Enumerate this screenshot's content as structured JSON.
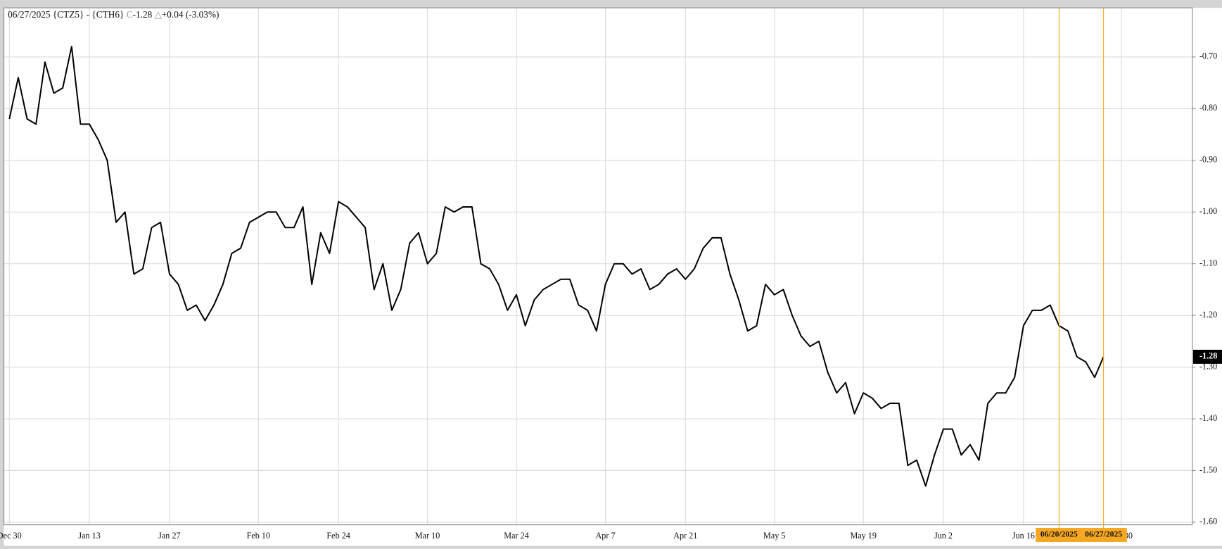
{
  "chart_data": {
    "type": "line",
    "header": {
      "title": "06/27/2025 {CTZ5} - {CTH6}",
      "close_label": "C",
      "close": "-1.28",
      "change_label": "△",
      "change": "+0.04",
      "change_pct": "(-3.03%)"
    },
    "categories": [
      "Dec 30",
      null,
      null,
      null,
      null,
      null,
      null,
      null,
      null,
      "Jan 13",
      null,
      null,
      null,
      null,
      null,
      null,
      null,
      null,
      "Jan 27",
      null,
      null,
      null,
      null,
      null,
      null,
      null,
      null,
      null,
      "Feb 10",
      null,
      null,
      null,
      null,
      null,
      null,
      null,
      null,
      "Feb 24",
      null,
      null,
      null,
      null,
      null,
      null,
      null,
      null,
      null,
      "Mar 10",
      null,
      null,
      null,
      null,
      null,
      null,
      null,
      null,
      null,
      "Mar 24",
      null,
      null,
      null,
      null,
      null,
      null,
      null,
      null,
      null,
      "Apr 7",
      null,
      null,
      null,
      null,
      null,
      null,
      null,
      null,
      "Apr 21",
      null,
      null,
      null,
      null,
      null,
      null,
      null,
      null,
      null,
      "May 5",
      null,
      null,
      null,
      null,
      null,
      null,
      null,
      null,
      null,
      "May 19",
      null,
      null,
      null,
      null,
      null,
      null,
      null,
      null,
      "Jun 2",
      null,
      null,
      null,
      null,
      null,
      null,
      null,
      null,
      "Jun 16",
      null,
      null,
      null,
      null,
      null,
      null,
      null,
      null,
      null,
      null,
      "Jun 30"
    ],
    "series": [
      {
        "name": "{CTZ5} - {CTH6}",
        "color": "#000000",
        "values": [
          -0.82,
          -0.74,
          -0.82,
          -0.83,
          -0.71,
          -0.77,
          -0.76,
          -0.68,
          -0.83,
          -0.83,
          -0.86,
          -0.9,
          -1.02,
          -1.0,
          -1.12,
          -1.11,
          -1.03,
          -1.02,
          -1.12,
          -1.14,
          -1.19,
          -1.18,
          -1.21,
          -1.18,
          -1.14,
          -1.08,
          -1.07,
          -1.02,
          -1.01,
          -1.0,
          -1.0,
          -1.03,
          -1.03,
          -0.99,
          -1.14,
          -1.04,
          -1.08,
          -0.98,
          -0.99,
          -1.01,
          -1.03,
          -1.15,
          -1.1,
          -1.19,
          -1.15,
          -1.06,
          -1.04,
          -1.1,
          -1.08,
          -0.99,
          -1.0,
          -0.99,
          -0.99,
          -1.1,
          -1.11,
          -1.14,
          -1.19,
          -1.16,
          -1.22,
          -1.17,
          -1.15,
          -1.14,
          -1.13,
          -1.13,
          -1.18,
          -1.19,
          -1.23,
          -1.14,
          -1.1,
          -1.1,
          -1.12,
          -1.11,
          -1.15,
          -1.14,
          -1.12,
          -1.11,
          -1.13,
          -1.11,
          -1.07,
          -1.05,
          -1.05,
          -1.12,
          -1.17,
          -1.23,
          -1.22,
          -1.14,
          -1.16,
          -1.15,
          -1.2,
          -1.24,
          -1.26,
          -1.25,
          -1.31,
          -1.35,
          -1.33,
          -1.39,
          -1.35,
          -1.36,
          -1.38,
          -1.37,
          -1.37,
          -1.49,
          -1.48,
          -1.53,
          -1.47,
          -1.42,
          -1.42,
          -1.47,
          -1.45,
          -1.48,
          -1.37,
          -1.35,
          -1.35,
          -1.32,
          -1.22,
          -1.19,
          -1.19,
          -1.18,
          -1.22,
          -1.23,
          -1.28,
          -1.29,
          -1.32,
          -1.28,
          null,
          null
        ]
      }
    ],
    "last_label": "-1.28",
    "highlights": [
      {
        "label": "06/20/2025",
        "index": 118
      },
      {
        "label": "06/27/2025",
        "index": 123
      }
    ],
    "highlight_color": "#f7a823",
    "ylim": [
      -1.605,
      -0.605
    ],
    "yticks": [
      {
        "value": -0.7,
        "label": "-0.70"
      },
      {
        "value": -0.8,
        "label": "-0.80"
      },
      {
        "value": -0.9,
        "label": "-0.90"
      },
      {
        "value": -1.0,
        "label": "-1.00"
      },
      {
        "value": -1.1,
        "label": "-1.10"
      },
      {
        "value": -1.2,
        "label": "-1.20"
      },
      {
        "value": -1.3,
        "label": "-1.30"
      },
      {
        "value": -1.4,
        "label": "-1.40"
      },
      {
        "value": -1.5,
        "label": "-1.50"
      },
      {
        "value": -1.6,
        "label": "-1.60"
      }
    ],
    "grid": true
  }
}
